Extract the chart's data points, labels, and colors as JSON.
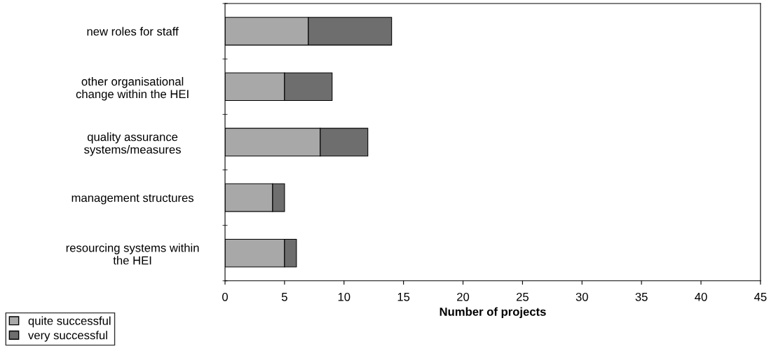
{
  "chart_data": {
    "type": "bar",
    "orientation": "horizontal",
    "stacked": true,
    "categories": [
      "new roles for staff",
      "other organisational\nchange within the HEI",
      "quality assurance\nsystems/measures",
      "management structures",
      "resourcing systems within\nthe HEI"
    ],
    "series": [
      {
        "name": "quite successful",
        "color": "#a8a8a8",
        "values": [
          7,
          5,
          8,
          4,
          5
        ]
      },
      {
        "name": "very successful",
        "color": "#6e6e6e",
        "values": [
          7,
          4,
          4,
          1,
          1
        ]
      }
    ],
    "xlabel": "Number of projects",
    "xlim": [
      0,
      45
    ],
    "xticks": [
      0,
      5,
      10,
      15,
      20,
      25,
      30,
      35,
      40,
      45
    ],
    "legend": "bottom left",
    "grid": false
  }
}
